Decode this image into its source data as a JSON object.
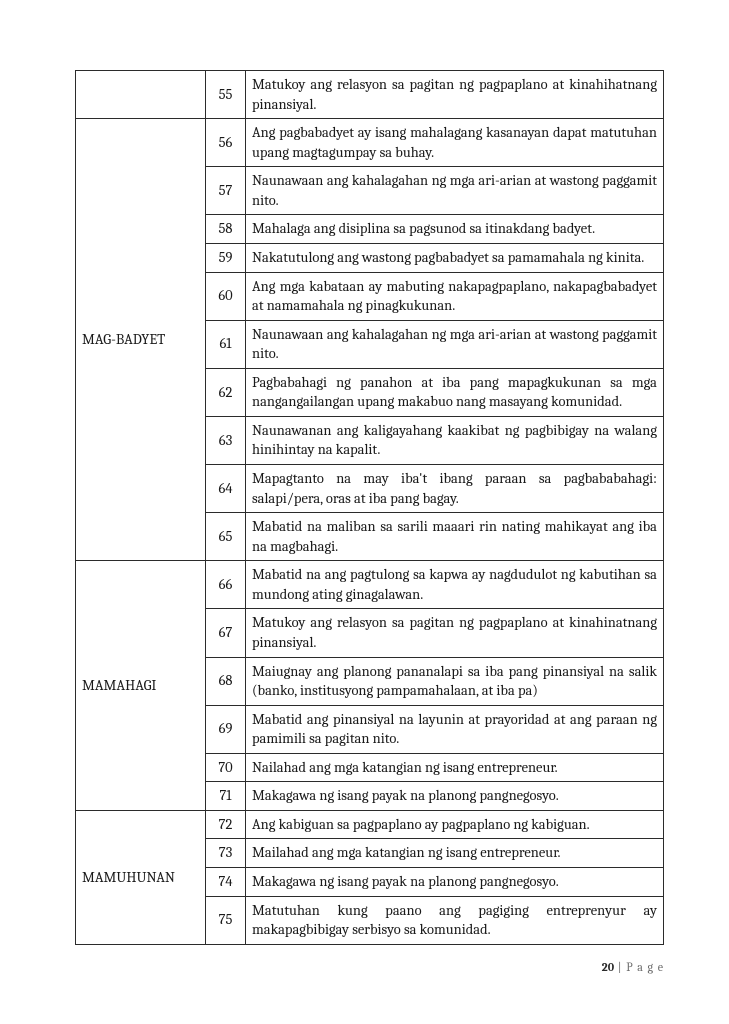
{
  "footer": {
    "page_num": "20",
    "page_label": "P a g e"
  },
  "rows": [
    {
      "cat": "",
      "num": "55",
      "desc": "Matukoy ang relasyon sa pagitan ng pagpaplano at kinahihatnang pinansiyal."
    },
    {
      "cat": "MAG-BADYET",
      "num": "56",
      "desc": "Ang pagbabadyet ay isang mahalagang kasanayan dapat matutuhan upang magtagumpay sa buhay."
    },
    {
      "cat": null,
      "num": "57",
      "desc": "Naunawaan ang kahalagahan ng mga ari-arian at wastong paggamit nito."
    },
    {
      "cat": null,
      "num": "58",
      "desc": "Mahalaga ang disiplina sa pagsunod sa itinakdang badyet."
    },
    {
      "cat": null,
      "num": "59",
      "desc": "Nakatutulong ang wastong pagbabadyet sa pamamahala ng kinita."
    },
    {
      "cat": null,
      "num": "60",
      "desc": "Ang mga kabataan ay mabuting nakapagpaplano, nakapagbabadyet at namamahala ng pinagkukunan."
    },
    {
      "cat": null,
      "num": "61",
      "desc": "Naunawaan ang kahalagahan ng mga ari-arian at wastong paggamit nito."
    },
    {
      "cat": null,
      "num": "62",
      "desc": "Pagbabahagi ng panahon at iba pang mapagkukunan sa mga nangangailangan upang makabuo nang masayang komunidad."
    },
    {
      "cat": null,
      "num": "63",
      "desc": "Naunawanan ang kaligayahang kaakibat ng pagbibigay na walang hinihintay na kapalit."
    },
    {
      "cat": null,
      "num": "64",
      "desc": "Mapagtanto na may iba't ibang paraan sa pagbababahagi: salapi/pera, oras at iba pang bagay."
    },
    {
      "cat": null,
      "num": "65",
      "desc": "Mabatid na maliban sa sarili maaari rin nating mahikayat ang iba na magbahagi."
    },
    {
      "cat": "MAMAHAGI",
      "num": "66",
      "desc": "Mabatid na ang pagtulong sa kapwa ay nagdudulot ng kabutihan sa mundong ating ginagalawan."
    },
    {
      "cat": null,
      "num": "67",
      "desc": "Matukoy ang relasyon sa pagitan ng pagpaplano at kinahinatnang pinansiyal."
    },
    {
      "cat": null,
      "num": "68",
      "desc": "Maiugnay ang planong pananalapi sa iba pang pinansiyal na salik (banko, institusyong pampamahalaan, at iba pa)"
    },
    {
      "cat": null,
      "num": "69",
      "desc": "Mabatid ang pinansiyal na layunin at prayoridad at ang paraan ng pamimili sa pagitan nito."
    },
    {
      "cat": null,
      "num": "70",
      "desc": "Nailahad ang mga katangian ng isang entrepreneur."
    },
    {
      "cat": null,
      "num": "71",
      "desc": "Makagawa ng isang payak na planong pangnegosyo."
    },
    {
      "cat": "MAMUHUNAN",
      "num": "72",
      "desc": "Ang kabiguan sa pagpaplano ay pagpaplano ng kabiguan."
    },
    {
      "cat": null,
      "num": "73",
      "desc": "Mailahad ang mga katangian ng isang entrepreneur."
    },
    {
      "cat": null,
      "num": "74",
      "desc": "Makagawa ng isang payak na planong pangnegosyo."
    },
    {
      "cat": null,
      "num": "75",
      "desc": "Matutuhan kung paano ang pagiging entreprenyur ay makapagbibigay serbisyo sa komunidad."
    }
  ],
  "groups": [
    {
      "cat_text": "",
      "labelIndex": 0,
      "span": 1,
      "rows": [
        0
      ]
    },
    {
      "cat_text": "MAG-BADYET",
      "labelIndex": 5,
      "span": 10,
      "rows": [
        1,
        2,
        3,
        4,
        5,
        6,
        7,
        8,
        9,
        10
      ]
    },
    {
      "cat_text": "MAMAHAGI",
      "labelIndex": 13,
      "span": 6,
      "rows": [
        11,
        12,
        13,
        14,
        15,
        16
      ]
    },
    {
      "cat_text": "MAMUHUNAN",
      "labelIndex": 18,
      "span": 4,
      "rows": [
        17,
        18,
        19,
        20
      ]
    }
  ]
}
